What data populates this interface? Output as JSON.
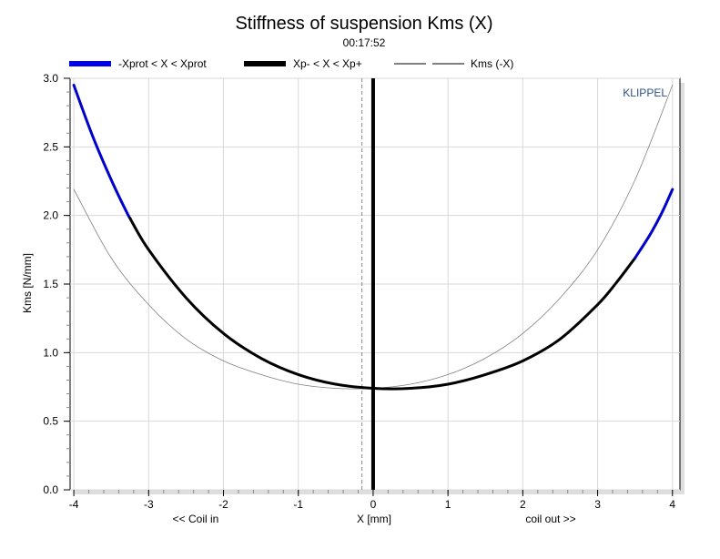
{
  "chart_data": {
    "type": "line",
    "title": "Stiffness of suspension Kms (X)",
    "subtitle": "00:17:52",
    "watermark": "KLIPPEL",
    "xlabel": "X [mm]",
    "ylabel": "Kms [N/mm]",
    "x_annotation_left": "<< Coil in",
    "x_annotation_right": "coil out >>",
    "xlim": [
      -4.05,
      4.1
    ],
    "ylim": [
      0,
      3.0
    ],
    "x_ticks": [
      "-4",
      "-3",
      "-2",
      "-1",
      "0",
      "1",
      "2",
      "3",
      "4"
    ],
    "x_tick_values": [
      -4,
      -3,
      -2,
      -1,
      0,
      1,
      2,
      3,
      4
    ],
    "y_ticks": [
      "0.0",
      "0.5",
      "1.0",
      "1.5",
      "2.0",
      "2.5",
      "3.0"
    ],
    "y_tick_values": [
      0,
      0.5,
      1.0,
      1.5,
      2.0,
      2.5,
      3.0
    ],
    "grid": true,
    "legend_position": "top",
    "series": [
      {
        "name": "-Xprot < X < Xprot",
        "color": "#0000cc",
        "style": "solid-thick",
        "x": [
          -4,
          -3.75,
          -3.5,
          -3.3,
          -3.25
        ],
        "y": [
          2.95,
          2.58,
          2.26,
          2.03,
          1.98
        ]
      },
      {
        "name": "Xp- < X < Xp+",
        "color": "#000000",
        "style": "solid-thick",
        "x": [
          -3.25,
          -3,
          -2.5,
          -2,
          -1.5,
          -1,
          -0.5,
          0,
          0.5,
          1,
          1.5,
          2,
          2.5,
          3,
          3.25,
          3.5
        ],
        "y": [
          1.98,
          1.75,
          1.4,
          1.14,
          0.96,
          0.84,
          0.77,
          0.74,
          0.74,
          0.77,
          0.84,
          0.94,
          1.1,
          1.35,
          1.51,
          1.69
        ]
      },
      {
        "name": "-Xprot < X < Xprot",
        "color": "#0000cc",
        "style": "solid-thick",
        "x": [
          3.5,
          3.7,
          3.85,
          4
        ],
        "y": [
          1.69,
          1.86,
          2.01,
          2.19
        ]
      },
      {
        "name": "Kms (-X)",
        "color": "#808080",
        "style": "thin",
        "x": [
          -4,
          -3.5,
          -3,
          -2.5,
          -2,
          -1.5,
          -1,
          -0.5,
          0,
          0.5,
          1,
          1.5,
          2,
          2.5,
          3,
          3.5,
          4
        ],
        "y": [
          2.19,
          1.69,
          1.35,
          1.1,
          0.94,
          0.84,
          0.77,
          0.74,
          0.74,
          0.77,
          0.84,
          0.96,
          1.14,
          1.4,
          1.75,
          2.26,
          2.95
        ]
      }
    ],
    "legend": [
      {
        "label": "-Xprot < X < Xprot",
        "color": "#0000ee",
        "style": "solid-thick"
      },
      {
        "label": "Xp- < X < Xp+",
        "color": "#000000",
        "style": "solid-thick"
      },
      {
        "label": "Kms (-X)",
        "color": "#808080",
        "style": "dashed"
      }
    ],
    "vertical_lines": [
      {
        "x": 0,
        "color": "#000000",
        "style": "solid-thick"
      },
      {
        "x": -0.15,
        "color": "#888888",
        "style": "dashed"
      }
    ]
  }
}
